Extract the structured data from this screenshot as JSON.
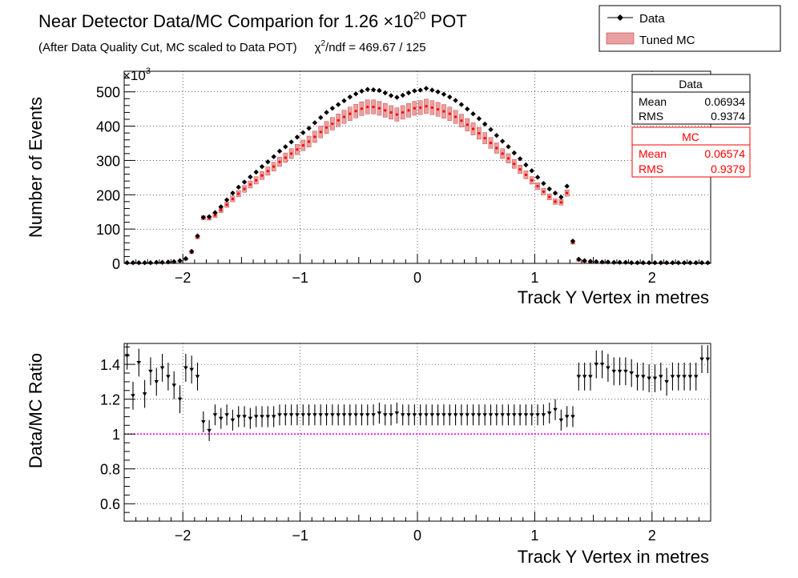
{
  "header": {
    "title_prefix": "Near Detector Data/MC Comparion for 1.26 ×10",
    "title_exp": "20",
    "title_suffix": " POT",
    "subtitle_left": "(After Data Quality Cut, MC scaled to Data POT)",
    "chi_symbol": "χ",
    "chi_exp": "2",
    "chi_rest": "/ndf = 469.67 / 125"
  },
  "legend": {
    "entries": [
      {
        "label": "Data",
        "color": "#000000"
      },
      {
        "label": "Tuned MC",
        "color": "#cc2222"
      }
    ]
  },
  "stats": {
    "data": {
      "title": "Data",
      "mean_label": "Mean",
      "mean": "0.06934",
      "rms_label": "RMS",
      "rms": "0.9374",
      "color": "#000000"
    },
    "mc": {
      "title": "MC",
      "mean_label": "Mean",
      "mean": "0.06574",
      "rms_label": "RMS",
      "rms": "0.9379",
      "color": "#ff0000"
    }
  },
  "chart_data": [
    {
      "type": "scatter",
      "xlabel": "Track Y Vertex in metres",
      "ylabel": "Number of Events",
      "y_multiplier_label": "×10",
      "y_multiplier_exp": "3",
      "xlim": [
        -2.5,
        2.5
      ],
      "ylim": [
        0,
        560
      ],
      "xticks": [
        -2,
        -1,
        0,
        1,
        2
      ],
      "yticks": [
        0,
        100,
        200,
        300,
        400,
        500
      ],
      "grid": true,
      "x": [
        -2.475,
        -2.425,
        -2.375,
        -2.325,
        -2.275,
        -2.225,
        -2.175,
        -2.125,
        -2.075,
        -2.025,
        -1.975,
        -1.925,
        -1.875,
        -1.825,
        -1.775,
        -1.725,
        -1.675,
        -1.625,
        -1.575,
        -1.525,
        -1.475,
        -1.425,
        -1.375,
        -1.325,
        -1.275,
        -1.225,
        -1.175,
        -1.125,
        -1.075,
        -1.025,
        -0.975,
        -0.925,
        -0.875,
        -0.825,
        -0.775,
        -0.725,
        -0.675,
        -0.625,
        -0.575,
        -0.525,
        -0.475,
        -0.425,
        -0.375,
        -0.325,
        -0.275,
        -0.225,
        -0.175,
        -0.125,
        -0.075,
        -0.025,
        0.025,
        0.075,
        0.125,
        0.175,
        0.225,
        0.275,
        0.325,
        0.375,
        0.425,
        0.475,
        0.525,
        0.575,
        0.625,
        0.675,
        0.725,
        0.775,
        0.825,
        0.875,
        0.925,
        0.975,
        1.025,
        1.075,
        1.125,
        1.175,
        1.225,
        1.275,
        1.325,
        1.375,
        1.425,
        1.475,
        1.525,
        1.575,
        1.625,
        1.675,
        1.725,
        1.775,
        1.825,
        1.875,
        1.925,
        1.975,
        2.025,
        2.075,
        2.125,
        2.175,
        2.225,
        2.275,
        2.325,
        2.375,
        2.425,
        2.475
      ],
      "series": [
        {
          "name": "Data",
          "color": "#000000",
          "values": [
            2,
            2,
            2,
            2,
            2,
            3,
            3,
            4,
            5,
            8,
            14,
            35,
            80,
            134,
            136,
            148,
            165,
            185,
            205,
            222,
            237,
            252,
            266,
            282,
            296,
            311,
            327,
            340,
            354,
            368,
            381,
            394,
            410,
            425,
            440,
            452,
            463,
            474,
            485,
            494,
            502,
            507,
            506,
            504,
            497,
            489,
            484,
            490,
            497,
            503,
            505,
            510,
            505,
            500,
            493,
            485,
            475,
            463,
            450,
            436,
            422,
            406,
            390,
            373,
            356,
            340,
            322,
            305,
            287,
            270,
            251,
            233,
            217,
            205,
            193,
            225,
            65,
            12,
            8,
            6,
            5,
            4,
            4,
            3,
            3,
            3,
            2,
            2,
            2,
            2,
            2,
            2,
            2,
            2,
            2,
            2,
            2,
            2,
            2,
            2
          ]
        },
        {
          "name": "Tuned MC",
          "color": "#cc2222",
          "values": [
            1.4,
            1.4,
            1.5,
            1.6,
            1.7,
            2.3,
            2.2,
            3.0,
            4.0,
            6.5,
            12.0,
            31.0,
            75.0,
            133.0,
            132.0,
            140.0,
            155.0,
            171.0,
            188.0,
            203.0,
            217.0,
            230.0,
            242.0,
            256.0,
            269.0,
            282.0,
            296.0,
            308.0,
            320.0,
            332.0,
            344.0,
            355.0,
            369.0,
            383.0,
            396.0,
            407.0,
            417.0,
            427.0,
            436.0,
            444.0,
            451.0,
            456.0,
            456.0,
            452.0,
            446.0,
            440.0,
            434.0,
            440.0,
            446.0,
            452.0,
            454.0,
            458.0,
            454.0,
            449.0,
            443.0,
            436.0,
            427.0,
            416.0,
            404.0,
            392.0,
            379.0,
            365.0,
            351.0,
            336.0,
            320.0,
            306.0,
            290.0,
            274.0,
            258.0,
            242.0,
            225.0,
            209.0,
            194.0,
            180.0,
            178.0,
            205.0,
            59.0,
            9.0,
            6.0,
            4.5,
            3.6,
            2.9,
            2.9,
            2.2,
            2.1,
            2.0,
            1.5,
            1.5,
            1.4,
            1.4,
            1.3,
            1.4,
            1.3,
            1.4,
            1.4,
            1.4,
            1.3,
            1.4,
            1.5,
            1.4
          ]
        }
      ]
    },
    {
      "type": "scatter",
      "xlabel": "Track Y Vertex in metres",
      "ylabel": "Data/MC Ratio",
      "xlim": [
        -2.5,
        2.5
      ],
      "ylim": [
        0.5,
        1.52
      ],
      "xticks": [
        -2,
        -1,
        0,
        1,
        2
      ],
      "yticks": [
        0.6,
        0.8,
        1,
        1.2,
        1.4
      ],
      "grid": true,
      "reference_line": {
        "y": 1,
        "color": "#ff00ff"
      },
      "x": [
        -2.475,
        -2.425,
        -2.375,
        -2.325,
        -2.275,
        -2.225,
        -2.175,
        -2.125,
        -2.075,
        -2.025,
        -1.975,
        -1.925,
        -1.875,
        -1.825,
        -1.775,
        -1.725,
        -1.675,
        -1.625,
        -1.575,
        -1.525,
        -1.475,
        -1.425,
        -1.375,
        -1.325,
        -1.275,
        -1.225,
        -1.175,
        -1.125,
        -1.075,
        -1.025,
        -0.975,
        -0.925,
        -0.875,
        -0.825,
        -0.775,
        -0.725,
        -0.675,
        -0.625,
        -0.575,
        -0.525,
        -0.475,
        -0.425,
        -0.375,
        -0.325,
        -0.275,
        -0.225,
        -0.175,
        -0.125,
        -0.075,
        -0.025,
        0.025,
        0.075,
        0.125,
        0.175,
        0.225,
        0.275,
        0.325,
        0.375,
        0.425,
        0.475,
        0.525,
        0.575,
        0.625,
        0.675,
        0.725,
        0.775,
        0.825,
        0.875,
        0.925,
        0.975,
        1.025,
        1.075,
        1.125,
        1.175,
        1.225,
        1.275,
        1.325,
        1.375,
        1.425,
        1.475,
        1.525,
        1.575,
        1.625,
        1.675,
        1.725,
        1.775,
        1.825,
        1.875,
        1.925,
        1.975,
        2.025,
        2.075,
        2.125,
        2.175,
        2.225,
        2.275,
        2.325,
        2.375,
        2.425,
        2.475
      ],
      "series": [
        {
          "name": "Data",
          "color": "#000000",
          "values": [
            1.45,
            1.22,
            1.41,
            1.23,
            1.36,
            1.3,
            1.38,
            1.33,
            1.28,
            1.2,
            1.38,
            1.37,
            1.33,
            1.07,
            1.02,
            1.11,
            1.09,
            1.11,
            1.08,
            1.1,
            1.1,
            1.09,
            1.1,
            1.1,
            1.1,
            1.1,
            1.11,
            1.11,
            1.11,
            1.11,
            1.11,
            1.11,
            1.11,
            1.11,
            1.11,
            1.11,
            1.11,
            1.11,
            1.11,
            1.11,
            1.11,
            1.11,
            1.11,
            1.12,
            1.11,
            1.11,
            1.12,
            1.11,
            1.11,
            1.11,
            1.11,
            1.11,
            1.11,
            1.11,
            1.11,
            1.11,
            1.11,
            1.11,
            1.11,
            1.11,
            1.11,
            1.11,
            1.11,
            1.11,
            1.11,
            1.11,
            1.11,
            1.11,
            1.11,
            1.11,
            1.11,
            1.11,
            1.12,
            1.14,
            1.08,
            1.1,
            1.1,
            1.33,
            1.33,
            1.33,
            1.4,
            1.4,
            1.38,
            1.36,
            1.36,
            1.36,
            1.35,
            1.33,
            1.33,
            1.32,
            1.32,
            1.33,
            1.3,
            1.33,
            1.33,
            1.33,
            1.33,
            1.33,
            1.43,
            1.43
          ],
          "errors": [
            0.08,
            0.08,
            0.08,
            0.08,
            0.08,
            0.08,
            0.08,
            0.08,
            0.08,
            0.08,
            0.08,
            0.08,
            0.08,
            0.06,
            0.06,
            0.06,
            0.06,
            0.06,
            0.06,
            0.06,
            0.06,
            0.06,
            0.06,
            0.06,
            0.06,
            0.06,
            0.06,
            0.06,
            0.06,
            0.06,
            0.06,
            0.06,
            0.06,
            0.06,
            0.06,
            0.06,
            0.06,
            0.06,
            0.06,
            0.06,
            0.06,
            0.06,
            0.06,
            0.06,
            0.06,
            0.06,
            0.06,
            0.06,
            0.06,
            0.06,
            0.06,
            0.06,
            0.06,
            0.06,
            0.06,
            0.06,
            0.06,
            0.06,
            0.06,
            0.06,
            0.06,
            0.06,
            0.06,
            0.06,
            0.06,
            0.06,
            0.06,
            0.06,
            0.06,
            0.06,
            0.06,
            0.06,
            0.06,
            0.06,
            0.06,
            0.06,
            0.06,
            0.08,
            0.08,
            0.08,
            0.08,
            0.08,
            0.08,
            0.08,
            0.08,
            0.08,
            0.08,
            0.08,
            0.08,
            0.08,
            0.08,
            0.08,
            0.08,
            0.08,
            0.08,
            0.08,
            0.08,
            0.08,
            0.08,
            0.08
          ]
        }
      ]
    }
  ]
}
